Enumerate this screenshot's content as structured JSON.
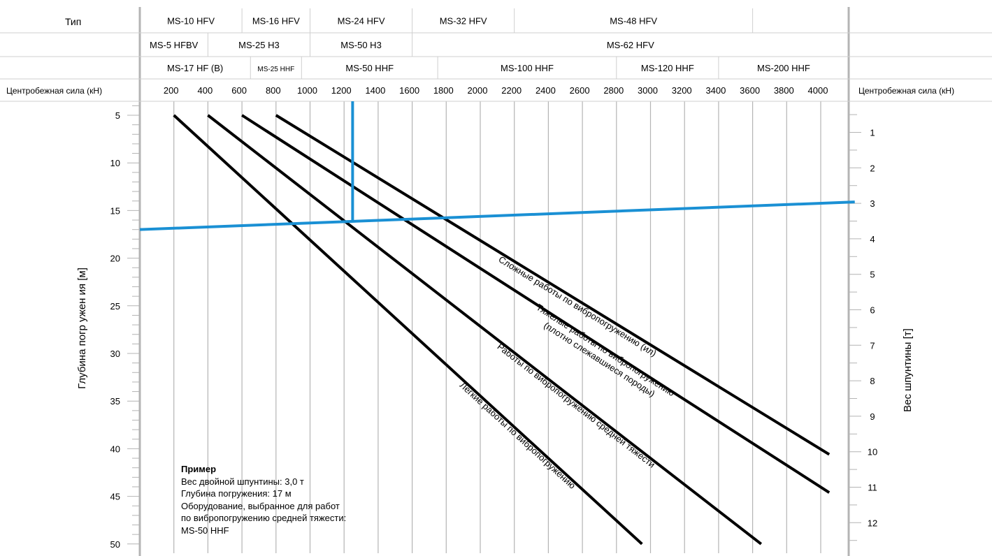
{
  "chart_data": {
    "type": "line",
    "type_label": "Тип",
    "type_rows": [
      [
        {
          "label": "MS-10 HFV",
          "from": 0,
          "to": 600
        },
        {
          "label": "MS-16 HFV",
          "from": 600,
          "to": 1000
        },
        {
          "label": "MS-24 HFV",
          "from": 1000,
          "to": 1600
        },
        {
          "label": "MS-32 HFV",
          "from": 1600,
          "to": 2200
        },
        {
          "label": "MS-48 HFV",
          "from": 2200,
          "to": 3600
        }
      ],
      [
        {
          "label": "MS-5 HFBV",
          "from": 0,
          "to": 400
        },
        {
          "label": "MS-25 H3",
          "from": 400,
          "to": 1000
        },
        {
          "label": "MS-50 H3",
          "from": 1000,
          "to": 1600
        },
        {
          "label": "MS-62 HFV",
          "from": 1600,
          "to": 4200
        }
      ],
      [
        {
          "label": "MS-17 HF (B)",
          "from": 0,
          "to": 650
        },
        {
          "label": "MS-25 HHF",
          "from": 650,
          "to": 950
        },
        {
          "label": "MS-50 HHF",
          "from": 950,
          "to": 1750
        },
        {
          "label": "MS-100 HHF",
          "from": 1750,
          "to": 2800
        },
        {
          "label": "MS-120 HHF",
          "from": 2800,
          "to": 3400
        },
        {
          "label": "MS-200 HHF",
          "from": 3400,
          "to": 4200
        }
      ]
    ],
    "force_label": "Центробежная сила (кН)",
    "x_ticks": [
      200,
      400,
      600,
      800,
      1000,
      1200,
      1400,
      1600,
      1800,
      2000,
      2200,
      2400,
      2600,
      2800,
      3000,
      3200,
      3400,
      3600,
      3800,
      4000
    ],
    "xlim": [
      0,
      4200
    ],
    "ylabel_left": "Глубина погр ужен ия [м]",
    "ylim_left": [
      4,
      50
    ],
    "y_ticks_left": [
      5,
      10,
      15,
      20,
      25,
      30,
      35,
      40,
      45,
      50
    ],
    "ylabel_right": "Вес шпунтины [т]",
    "ylim_right": [
      0.2,
      13.1
    ],
    "y_ticks_right": [
      1,
      2,
      3,
      4,
      5,
      6,
      7,
      8,
      9,
      10,
      11,
      12
    ],
    "series": [
      {
        "name": "Легкие работы по вибропогружению",
        "x": [
          200,
          2950
        ],
        "y": [
          5,
          50
        ]
      },
      {
        "name": "Работы по вибропогружению средней тяжести",
        "x": [
          400,
          3650
        ],
        "y": [
          5,
          50
        ]
      },
      {
        "name": "Тяжелые работы по вибропогружению (плотно слежавшиеся породы)",
        "x": [
          600,
          4050
        ],
        "y": [
          5,
          44.6
        ]
      },
      {
        "name": "Сложные работы по вибропогружению (ил)",
        "x": [
          800,
          4050
        ],
        "y": [
          5,
          40.6
        ]
      }
    ],
    "example_lines": {
      "horizontal": {
        "x": [
          0,
          4200
        ],
        "y": [
          17,
          14.1
        ]
      },
      "vertical": {
        "x": [
          1250,
          1250
        ],
        "y": [
          4,
          16.1
        ]
      }
    },
    "example": {
      "title": "Пример",
      "lines": [
        "Вес двойной шпунтины: 3,0 т",
        "Глубина погружения: 17 м",
        "Оборудование, выбранное для работ",
        "по вибропогружению средней тяжести:",
        "MS-50 HHF"
      ]
    },
    "colors": {
      "curve": "#000000",
      "example": "#1a90d4",
      "grid": "#b4b4b4",
      "frame": "#b4b4b4"
    },
    "grid": true
  }
}
